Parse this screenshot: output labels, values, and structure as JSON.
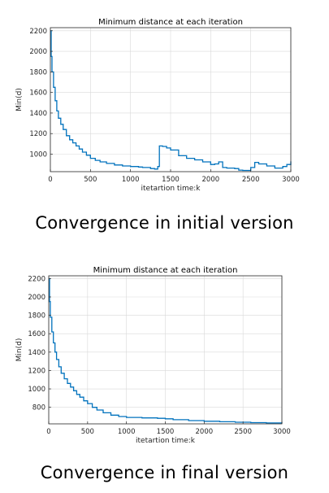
{
  "panels": [
    {
      "caption": "Convergence in initial version",
      "chart_data": {
        "type": "line",
        "title": "Minimum distance at each iteration",
        "xlabel": "itetartion time:k",
        "ylabel": "Min(d)",
        "xlim": [
          0,
          3000
        ],
        "ylim": [
          830,
          2230
        ],
        "xticks": [
          0,
          500,
          1000,
          1500,
          2000,
          2500,
          3000
        ],
        "yticks": [
          1000,
          1200,
          1400,
          1600,
          1800,
          2000,
          2200
        ],
        "grid": true,
        "line_color": "#0072bd",
        "series": [
          {
            "x": [
              0,
              10,
              20,
              40,
              60,
              80,
              100,
              130,
              160,
              200,
              240,
              280,
              320,
              360,
              400,
              450,
              500,
              560,
              620,
              700,
              800,
              900,
              1000,
              1100,
              1150,
              1250,
              1300,
              1340,
              1360,
              1400,
              1450,
              1500,
              1600,
              1700,
              1800,
              1900,
              2000,
              2050,
              2100,
              2150,
              2200,
              2300,
              2350,
              2400,
              2500,
              2550,
              2600,
              2700,
              2800,
              2900,
              2950,
              3000
            ],
            "y": [
              2200,
              1950,
              1800,
              1650,
              1520,
              1420,
              1350,
              1290,
              1240,
              1180,
              1140,
              1110,
              1080,
              1050,
              1020,
              990,
              960,
              940,
              925,
              910,
              895,
              885,
              880,
              875,
              870,
              860,
              855,
              880,
              1080,
              1075,
              1060,
              1040,
              985,
              960,
              945,
              925,
              900,
              905,
              925,
              870,
              865,
              860,
              845,
              842,
              870,
              920,
              905,
              885,
              865,
              880,
              900,
              930
            ]
          }
        ]
      }
    },
    {
      "caption": "Convergence in final version",
      "chart_data": {
        "type": "line",
        "title": "Minimum distance at each iteration",
        "xlabel": "itetartion time:k",
        "ylabel": "Min(d)",
        "xlim": [
          0,
          3000
        ],
        "ylim": [
          620,
          2230
        ],
        "xticks": [
          0,
          500,
          1000,
          1500,
          2000,
          2500,
          3000
        ],
        "yticks": [
          800,
          1000,
          1200,
          1400,
          1600,
          1800,
          2000,
          2200
        ],
        "grid": true,
        "line_color": "#0072bd",
        "series": [
          {
            "x": [
              0,
              10,
              20,
              40,
              60,
              80,
              100,
              130,
              160,
              200,
              240,
              280,
              320,
              360,
              400,
              450,
              500,
              560,
              620,
              700,
              800,
              900,
              1000,
              1200,
              1400,
              1500,
              1600,
              1800,
              2000,
              2200,
              2400,
              2600,
              2800,
              3000
            ],
            "y": [
              2200,
              1950,
              1780,
              1620,
              1500,
              1400,
              1320,
              1240,
              1170,
              1110,
              1060,
              1020,
              980,
              940,
              910,
              870,
              840,
              800,
              770,
              740,
              715,
              700,
              690,
              685,
              680,
              675,
              665,
              655,
              648,
              643,
              638,
              633,
              630,
              628
            ]
          }
        ]
      }
    }
  ]
}
